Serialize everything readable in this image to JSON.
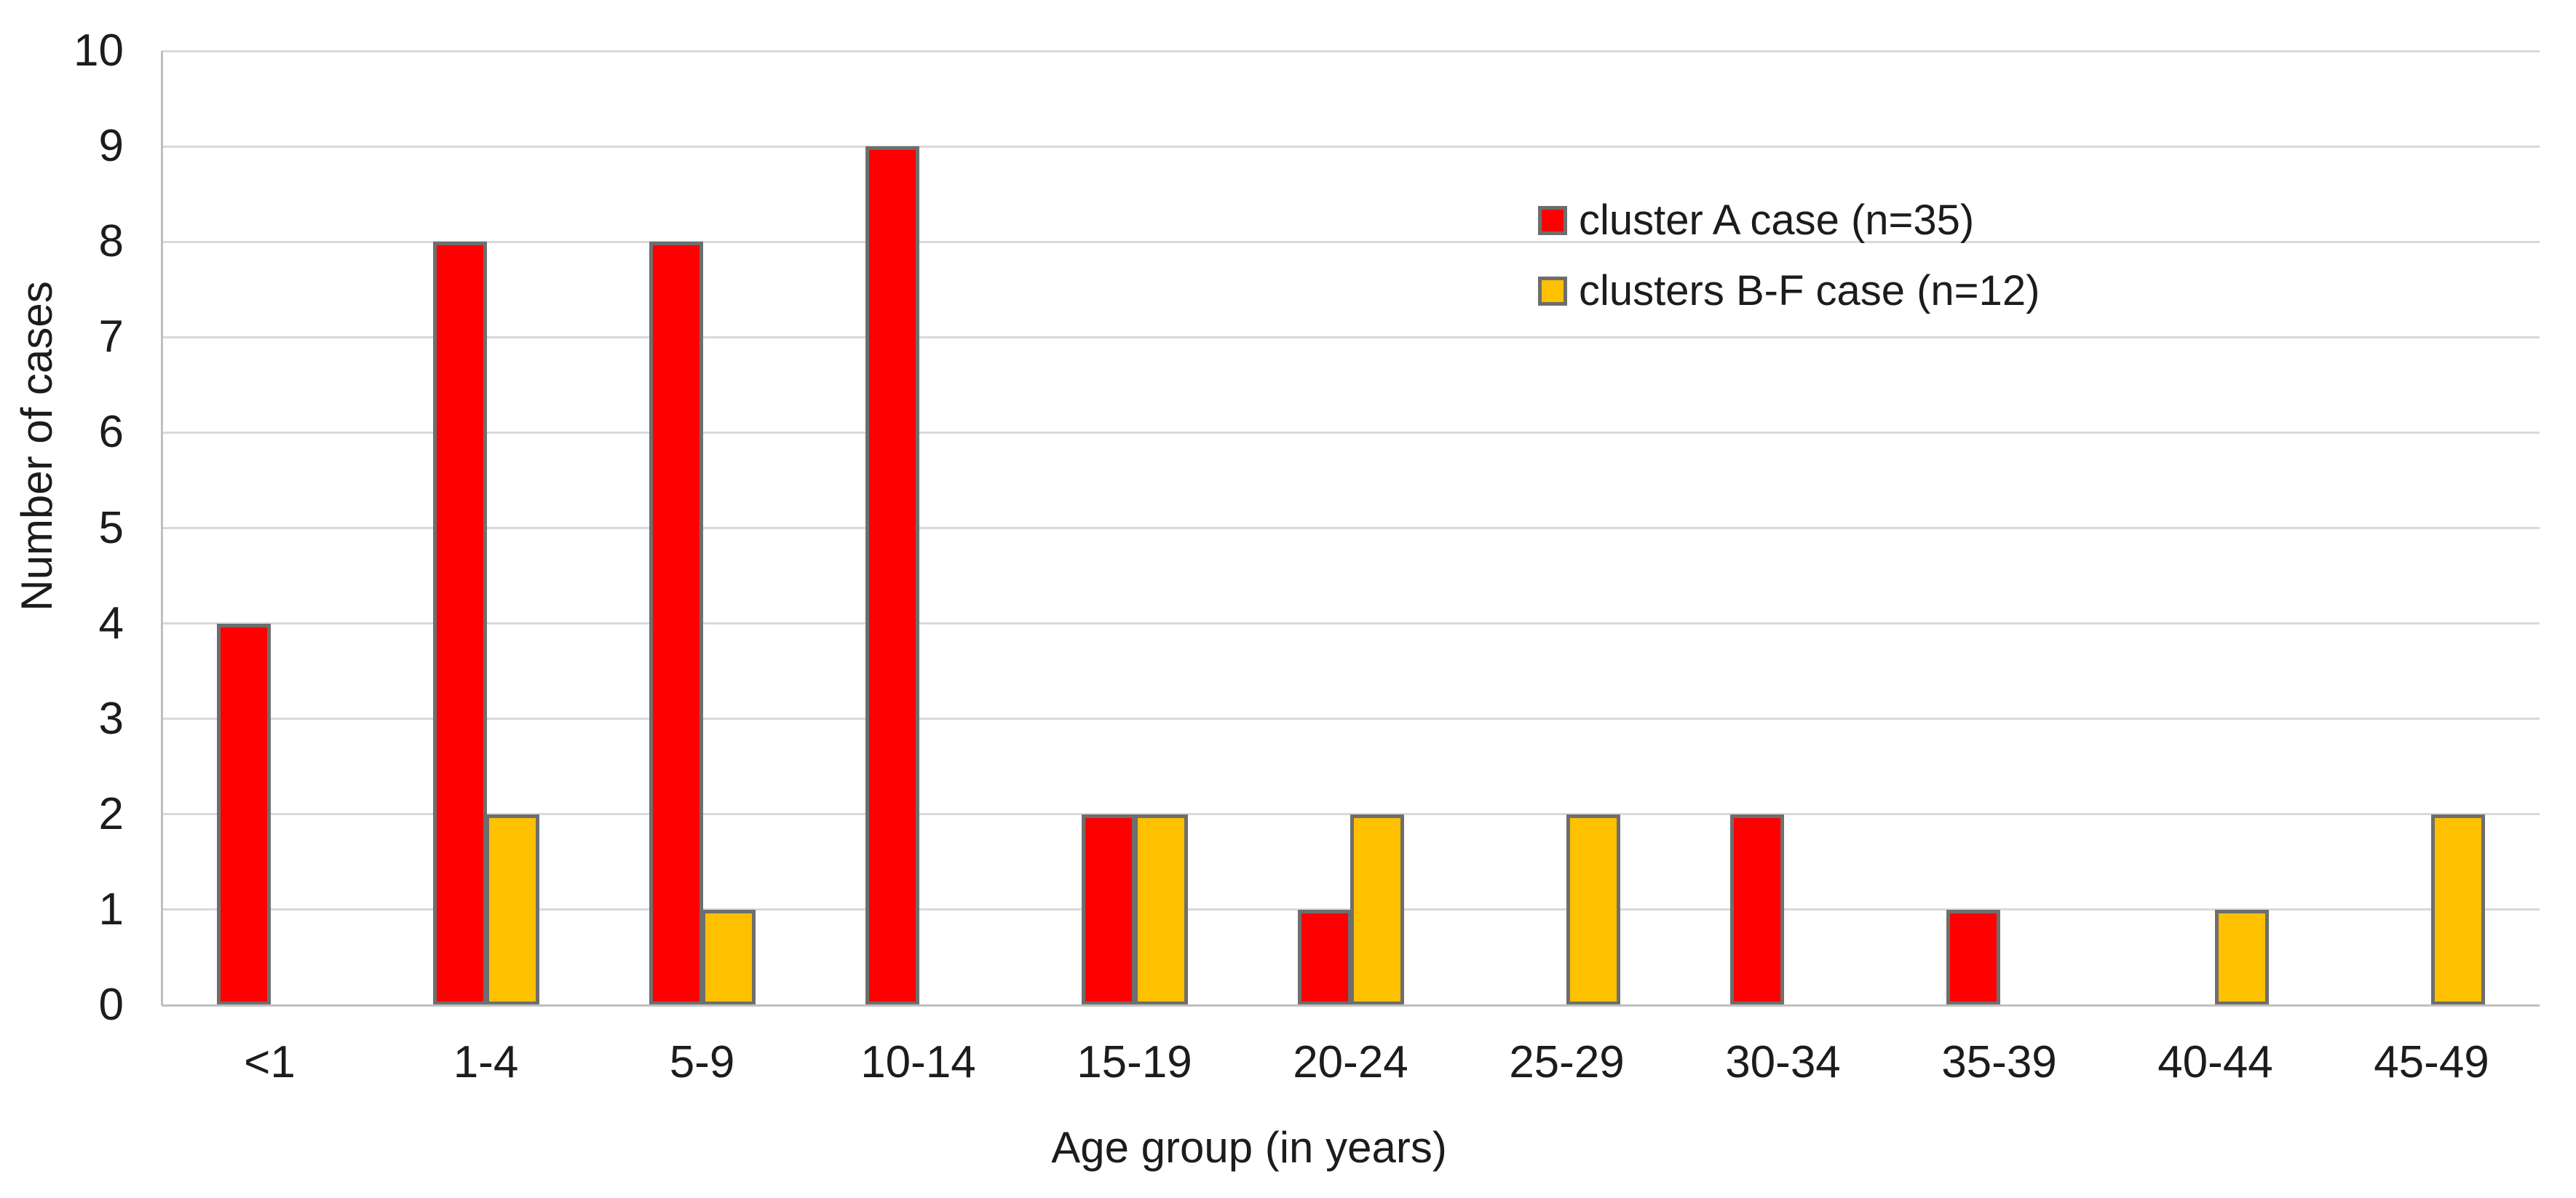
{
  "chart_data": {
    "type": "bar",
    "title": "",
    "xlabel": "Age group (in years)",
    "ylabel": "Number of cases",
    "categories": [
      "<1",
      "1-4",
      "5-9",
      "10-14",
      "15-19",
      "20-24",
      "25-29",
      "30-34",
      "35-39",
      "40-44",
      "45-49"
    ],
    "series": [
      {
        "name": "cluster A case (n=35)",
        "color": "#FF0000",
        "values": [
          4,
          8,
          8,
          9,
          2,
          1,
          0,
          2,
          1,
          0,
          0
        ]
      },
      {
        "name": "clusters B-F case (n=12)",
        "color": "#FFC000",
        "values": [
          0,
          2,
          1,
          0,
          2,
          2,
          2,
          0,
          0,
          1,
          2
        ]
      }
    ],
    "ylim": [
      0,
      10
    ],
    "yticks": [
      0,
      1,
      2,
      3,
      4,
      5,
      6,
      7,
      8,
      9,
      10
    ],
    "grid": true,
    "legend_position": "inside-top-right",
    "colors": {
      "bar_border": "#6E6E6E",
      "gridline": "#D9D9D9",
      "axis_line": "#BFBFBF",
      "text": "#1C1C1C",
      "background": "#FFFFFF"
    }
  }
}
